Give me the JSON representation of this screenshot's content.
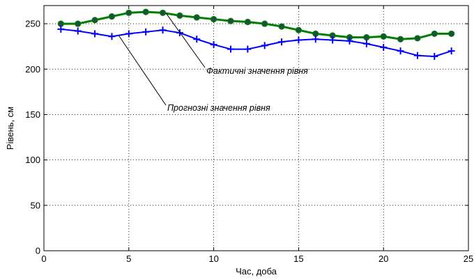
{
  "chart_data": {
    "type": "line",
    "xlabel": "Час, доба",
    "ylabel": "Рівень, см",
    "xlim": [
      0,
      25
    ],
    "ylim": [
      0,
      270
    ],
    "xticks": [
      0,
      5,
      10,
      15,
      20,
      25
    ],
    "yticks": [
      0,
      50,
      100,
      150,
      200,
      250
    ],
    "grid": true,
    "series": [
      {
        "name": "Фактичні значення рівня",
        "color": "#007f00",
        "marker": "filled-circle",
        "x": [
          1,
          2,
          3,
          4,
          5,
          6,
          7,
          8,
          9,
          10,
          11,
          12,
          13,
          14,
          15,
          16,
          17,
          18,
          19,
          20,
          21,
          22,
          23,
          24
        ],
        "values": [
          250,
          250,
          254,
          258,
          262,
          263,
          262,
          259,
          257,
          255,
          253,
          252,
          250,
          247,
          243,
          239,
          237,
          235,
          235,
          236,
          233,
          234,
          239,
          239
        ]
      },
      {
        "name": "Прогнозні значення рівня",
        "color": "#0000ff",
        "marker": "plus",
        "x": [
          1,
          2,
          3,
          4,
          5,
          6,
          7,
          8,
          9,
          10,
          11,
          12,
          13,
          14,
          15,
          16,
          17,
          18,
          19,
          20,
          21,
          22,
          23,
          24
        ],
        "values": [
          244,
          242,
          239,
          236,
          239,
          241,
          243,
          240,
          233,
          227,
          222,
          222,
          226,
          230,
          232,
          233,
          232,
          231,
          228,
          224,
          220,
          215,
          214,
          220
        ]
      }
    ],
    "annotations": [
      {
        "text": "Фактичні значення рівня",
        "series": 0,
        "target_x": 7.2
      },
      {
        "text": "Прогнозні значення рівня",
        "series": 1,
        "target_x": 4.4
      }
    ]
  }
}
